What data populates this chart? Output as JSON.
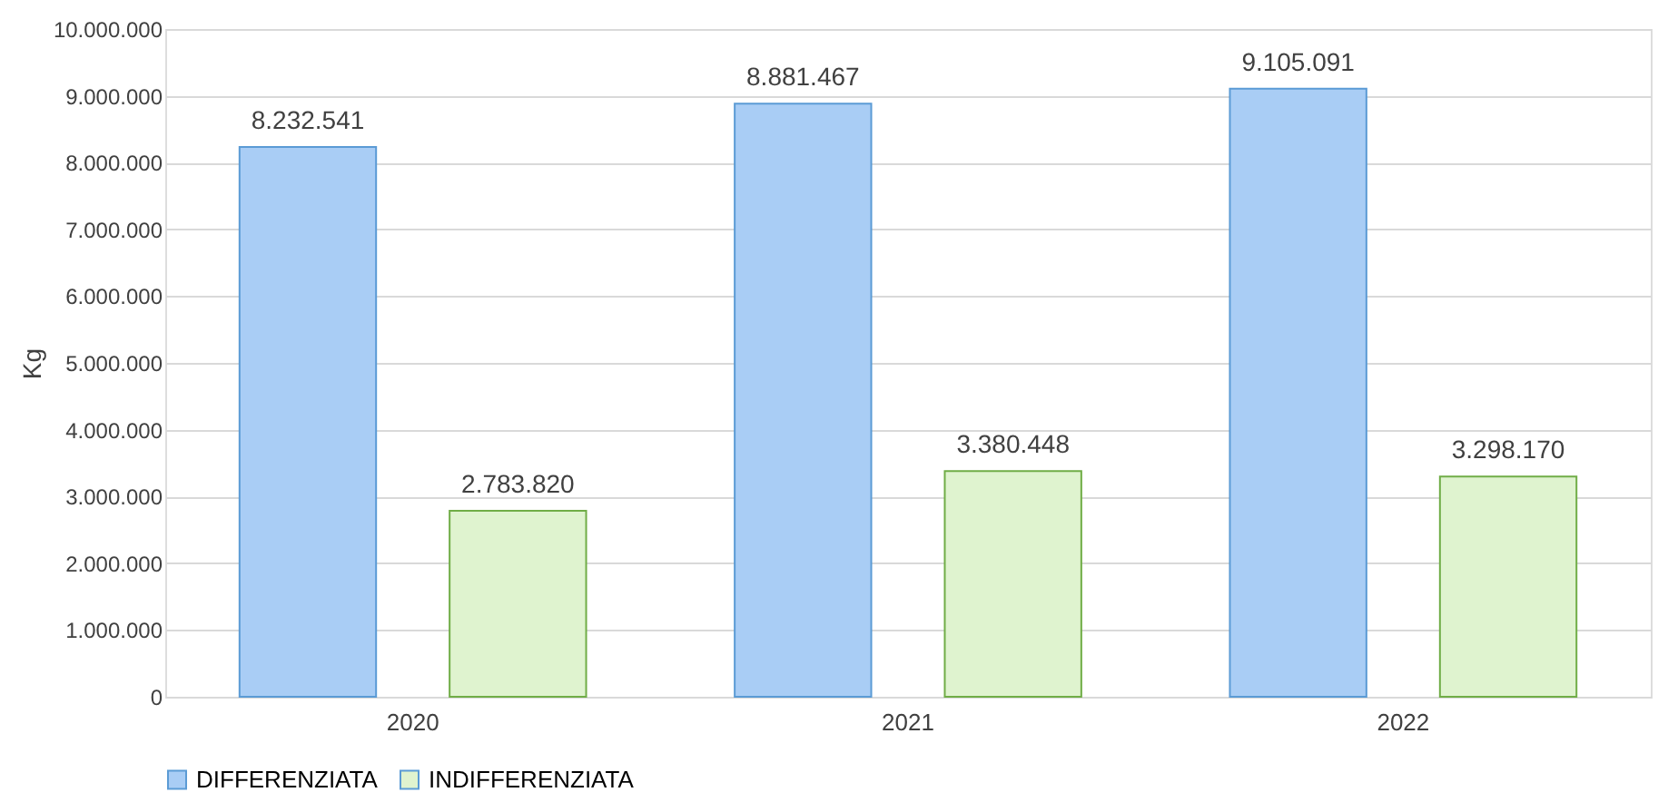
{
  "chart_data": {
    "type": "bar",
    "ylabel": "Kg",
    "categories": [
      "2020",
      "2021",
      "2022"
    ],
    "series": [
      {
        "name": "DIFFERENZIATA",
        "color": "#a9cdf5",
        "values": [
          8232541,
          8881467,
          9105091
        ],
        "value_labels": [
          "8.232.541",
          "8.881.467",
          "9.105.091"
        ]
      },
      {
        "name": "INDIFFERENZIATA",
        "color": "#dff3cf",
        "values": [
          2783820,
          3380448,
          3298170
        ],
        "value_labels": [
          "2.783.820",
          "3.380.448",
          "3.298.170"
        ]
      }
    ],
    "ylim": [
      0,
      10000000
    ],
    "yticks": [
      {
        "value": 0,
        "label": "0"
      },
      {
        "value": 1000000,
        "label": "1.000.000"
      },
      {
        "value": 2000000,
        "label": "2.000.000"
      },
      {
        "value": 3000000,
        "label": "3.000.000"
      },
      {
        "value": 4000000,
        "label": "4.000.000"
      },
      {
        "value": 5000000,
        "label": "5.000.000"
      },
      {
        "value": 6000000,
        "label": "6.000.000"
      },
      {
        "value": 7000000,
        "label": "7.000.000"
      },
      {
        "value": 8000000,
        "label": "8.000.000"
      },
      {
        "value": 9000000,
        "label": "9.000.000"
      },
      {
        "value": 10000000,
        "label": "10.000.000"
      }
    ],
    "grid": "y",
    "legend": "bottom"
  }
}
